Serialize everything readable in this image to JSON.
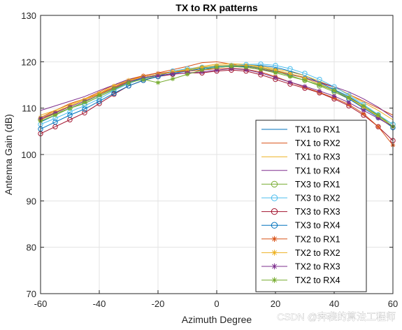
{
  "chart_data": {
    "type": "line",
    "title": "TX to RX patterns",
    "xlabel": "Azimuth Degree",
    "ylabel": "Antenna Gain (dB)",
    "xlim": [
      -60,
      60
    ],
    "ylim": [
      70,
      130
    ],
    "xticks": [
      -60,
      -40,
      -20,
      0,
      20,
      40,
      60
    ],
    "yticks": [
      70,
      80,
      90,
      100,
      110,
      120,
      130
    ],
    "grid": true,
    "legend_position": "bottom-right",
    "x": [
      -60,
      -55,
      -50,
      -45,
      -40,
      -35,
      -30,
      -25,
      -20,
      -15,
      -10,
      -5,
      0,
      5,
      10,
      15,
      20,
      25,
      30,
      35,
      40,
      45,
      50,
      55,
      60
    ],
    "series": [
      {
        "name": "TX1 to RX1",
        "color": "#0072BD",
        "marker": "none",
        "values": [
          107,
          108.5,
          110,
          111,
          112.5,
          114,
          115.5,
          116.5,
          117,
          117.8,
          118.4,
          118.8,
          119,
          119.2,
          119.3,
          119.2,
          118.8,
          118,
          117,
          115.5,
          114,
          112.5,
          110.5,
          108.5,
          106
        ]
      },
      {
        "name": "TX1 to RX2",
        "color": "#D95319",
        "marker": "none",
        "values": [
          108,
          109.5,
          111,
          112,
          113.5,
          115,
          116.2,
          117,
          117.6,
          118.3,
          119,
          119.8,
          120,
          119.5,
          119,
          118.6,
          118,
          117.4,
          116.6,
          115.5,
          114.5,
          113,
          111.5,
          110,
          108.5
        ]
      },
      {
        "name": "TX1 to RX3",
        "color": "#EDB120",
        "marker": "none",
        "values": [
          108.5,
          109.5,
          110.8,
          112,
          113.2,
          114.5,
          115.8,
          116.8,
          117.2,
          117.8,
          118.4,
          119,
          119.5,
          119.6,
          119.4,
          119,
          118.5,
          117.8,
          117,
          115.8,
          114.5,
          113,
          111.2,
          109.5,
          107.5
        ]
      },
      {
        "name": "TX1 to RX4",
        "color": "#7E2F8E",
        "marker": "none",
        "values": [
          109.5,
          110.5,
          111.5,
          112.5,
          113.8,
          115,
          116.2,
          116.8,
          117.2,
          117.8,
          118.2,
          118.8,
          119,
          119,
          118.8,
          118.4,
          117.8,
          117.2,
          116.5,
          115.6,
          114.6,
          113.5,
          112,
          110.2,
          108
        ]
      },
      {
        "name": "TX3 to RX1",
        "color": "#77AC30",
        "marker": "circle",
        "values": [
          107.5,
          108.8,
          110,
          111,
          112.5,
          114,
          115.5,
          116.3,
          116.8,
          117.5,
          118.2,
          118.7,
          119,
          119.1,
          119,
          118.6,
          117.9,
          117,
          116,
          114.8,
          113.5,
          112,
          110.2,
          108.4,
          106.5
        ]
      },
      {
        "name": "TX3 to RX2",
        "color": "#4DBEEE",
        "marker": "circle",
        "values": [
          106.5,
          107.8,
          109.2,
          110.5,
          112,
          113.8,
          115.3,
          116.4,
          117.2,
          118,
          118.5,
          118.8,
          119,
          119.2,
          119.4,
          119.5,
          119.2,
          118.5,
          117.5,
          116.2,
          114.6,
          112.8,
          110.8,
          108.6,
          106.5
        ]
      },
      {
        "name": "TX3 to RX3",
        "color": "#A2142F",
        "marker": "circle",
        "values": [
          104.5,
          106,
          107.5,
          109,
          111,
          113,
          114.8,
          116,
          116.8,
          117.3,
          117.6,
          117.6,
          118,
          118.2,
          118,
          117.2,
          116.2,
          115.2,
          114.3,
          113.3,
          112,
          110.5,
          108.5,
          106,
          103
        ]
      },
      {
        "name": "TX3 to RX4",
        "color": "#0072BD",
        "marker": "circle",
        "values": [
          105.5,
          107,
          108.5,
          109.8,
          111.5,
          113.2,
          114.8,
          116,
          116.8,
          117.5,
          118,
          118.5,
          118.8,
          119,
          119,
          118.8,
          118.2,
          117.4,
          116.4,
          115.2,
          113.8,
          112,
          110,
          108,
          105.8
        ]
      },
      {
        "name": "TX2 to RX1",
        "color": "#D95319",
        "marker": "star",
        "values": [
          107.5,
          109,
          110.5,
          111.8,
          113,
          114.5,
          116,
          117,
          117.5,
          117.8,
          118,
          118.2,
          118.5,
          118.6,
          118.4,
          117.8,
          116.8,
          115.6,
          114.5,
          113.4,
          112.2,
          110.8,
          108.8,
          106,
          102
        ]
      },
      {
        "name": "TX2 to RX2",
        "color": "#EDB120",
        "marker": "star",
        "values": [
          108,
          109.2,
          110.5,
          111.8,
          113.2,
          114.8,
          116,
          116.8,
          117.2,
          117.8,
          118.3,
          118.8,
          119.2,
          119.3,
          119.2,
          118.8,
          118.2,
          117.4,
          116.4,
          115.2,
          113.8,
          112.2,
          110.2,
          108.2,
          106
        ]
      },
      {
        "name": "TX2 to RX3",
        "color": "#7E2F8E",
        "marker": "star",
        "values": [
          107.8,
          109,
          110.3,
          111.5,
          112.8,
          114.3,
          115.7,
          116.6,
          117,
          117.4,
          117.6,
          117.8,
          118.2,
          118.5,
          118.3,
          117.6,
          116.6,
          115.6,
          114.7,
          113.7,
          112.6,
          111.2,
          109.5,
          107.8,
          106
        ]
      },
      {
        "name": "TX2 to RX4",
        "color": "#77AC30",
        "marker": "star",
        "values": [
          107.2,
          108.5,
          110,
          111.3,
          112.8,
          114.2,
          115.5,
          116.2,
          115.5,
          116.3,
          117.3,
          118.2,
          118.8,
          119,
          118.8,
          118.3,
          117.6,
          116.8,
          116,
          115,
          113.8,
          112.3,
          110.5,
          108.5,
          106
        ]
      }
    ]
  },
  "watermark": "CSDN @奔袭的算法工程师"
}
